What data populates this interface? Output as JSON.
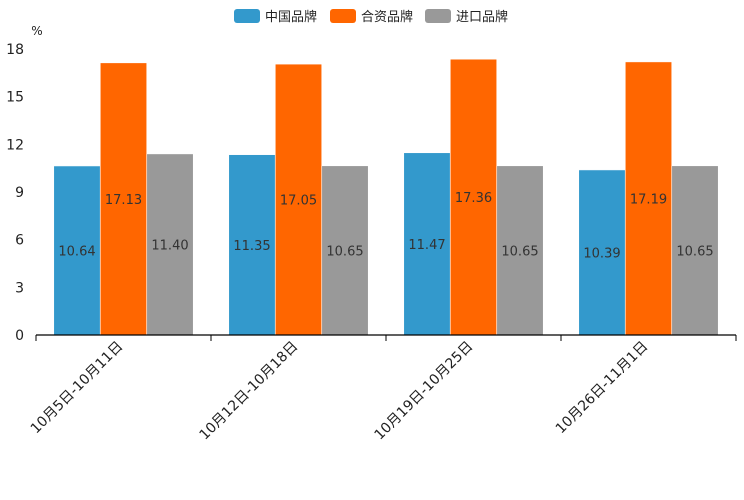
{
  "chart_data": {
    "type": "bar",
    "title": "",
    "xlabel": "",
    "ylabel": "%",
    "ylim": [
      0,
      18
    ],
    "yticks": [
      0,
      3,
      6,
      9,
      12,
      15,
      18
    ],
    "ytick_labels": [
      "0",
      "3",
      "6",
      "9",
      "12",
      "15",
      "18"
    ],
    "categories": [
      "10月5日-10月11日",
      "10月12日-10月18日",
      "10月19日-10月25日",
      "10月26日-11月1日"
    ],
    "series": [
      {
        "name": "中国品牌",
        "color": "#3399cc",
        "values": [
          10.64,
          11.35,
          11.47,
          10.39
        ],
        "labels": [
          "10.64",
          "11.35",
          "11.47",
          "10.39"
        ]
      },
      {
        "name": "合资品牌",
        "color": "#ff6600",
        "values": [
          17.13,
          17.05,
          17.36,
          17.19
        ],
        "labels": [
          "17.13",
          "17.05",
          "17.36",
          "17.19"
        ]
      },
      {
        "name": "进口品牌",
        "color": "#999999",
        "values": [
          11.4,
          10.65,
          10.65,
          10.65
        ],
        "labels": [
          "11.40",
          "10.65",
          "10.65",
          "10.65"
        ]
      }
    ],
    "legend_position": "top-center",
    "grid": false
  }
}
